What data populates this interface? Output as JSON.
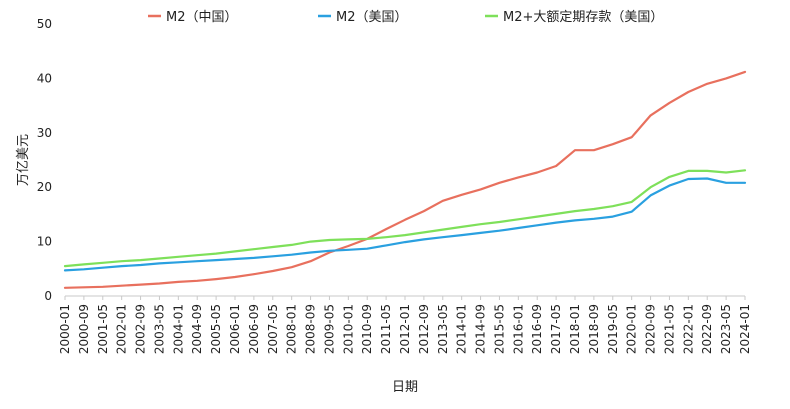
{
  "chart_data": {
    "type": "line",
    "title": "",
    "xlabel": "日期",
    "ylabel": "万亿美元",
    "ylim": [
      0,
      50
    ],
    "yticks": [
      0,
      10,
      20,
      30,
      40,
      50
    ],
    "grid": false,
    "legend_position": "top",
    "x": [
      "2000-01",
      "2000-09",
      "2001-05",
      "2002-01",
      "2002-09",
      "2003-05",
      "2004-01",
      "2004-09",
      "2005-05",
      "2006-01",
      "2006-09",
      "2007-05",
      "2008-01",
      "2008-09",
      "2009-05",
      "2010-01",
      "2010-09",
      "2011-05",
      "2012-01",
      "2012-09",
      "2013-05",
      "2014-01",
      "2014-09",
      "2015-05",
      "2016-01",
      "2016-09",
      "2017-05",
      "2018-01",
      "2018-09",
      "2019-05",
      "2020-01",
      "2020-09",
      "2021-05",
      "2022-01",
      "2022-09",
      "2023-05",
      "2024-01"
    ],
    "series": [
      {
        "name": "M2（中国）",
        "color": "#e8705e",
        "values": [
          1.5,
          1.6,
          1.7,
          1.9,
          2.1,
          2.3,
          2.6,
          2.8,
          3.1,
          3.5,
          4.0,
          4.6,
          5.3,
          6.4,
          8.0,
          9.2,
          10.5,
          12.3,
          14.0,
          15.6,
          17.5,
          18.6,
          19.6,
          20.8,
          21.8,
          22.7,
          23.9,
          26.8,
          26.8,
          27.9,
          29.2,
          33.2,
          35.5,
          37.5,
          39.0,
          40.0,
          41.2
        ]
      },
      {
        "name": "M2（美国）",
        "color": "#2aa0e0",
        "values": [
          4.7,
          4.9,
          5.2,
          5.5,
          5.7,
          6.0,
          6.2,
          6.4,
          6.6,
          6.8,
          7.0,
          7.3,
          7.6,
          8.0,
          8.3,
          8.5,
          8.7,
          9.3,
          9.9,
          10.4,
          10.8,
          11.2,
          11.6,
          12.0,
          12.5,
          13.0,
          13.5,
          13.9,
          14.2,
          14.6,
          15.5,
          18.5,
          20.3,
          21.5,
          21.6,
          20.8,
          20.8
        ]
      },
      {
        "name": "M2+大额定期存款（美国）",
        "color": "#7ee05a",
        "values": [
          5.5,
          5.8,
          6.1,
          6.4,
          6.6,
          6.9,
          7.2,
          7.5,
          7.8,
          8.2,
          8.6,
          9.0,
          9.4,
          10.0,
          10.3,
          10.4,
          10.5,
          10.8,
          11.2,
          11.7,
          12.2,
          12.7,
          13.2,
          13.6,
          14.1,
          14.6,
          15.1,
          15.6,
          16.0,
          16.5,
          17.3,
          20.0,
          21.9,
          23.0,
          23.0,
          22.7,
          23.1
        ]
      }
    ]
  }
}
